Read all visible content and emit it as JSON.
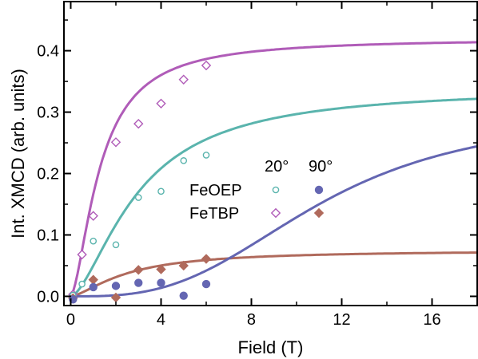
{
  "chart_data": {
    "type": "scatter",
    "xlabel": "Field (T)",
    "ylabel": "Int. XMCD (arb. units)",
    "xlim": [
      -0.3,
      18
    ],
    "ylim": [
      -0.015,
      0.48
    ],
    "x_ticks": [
      0,
      4,
      8,
      12,
      16
    ],
    "x_tick_labels": [
      "0",
      "4",
      "8",
      "12",
      "16"
    ],
    "y_ticks": [
      0.0,
      0.1,
      0.2,
      0.3,
      0.4
    ],
    "y_tick_labels": [
      "0.0",
      "0.1",
      "0.2",
      "0.3",
      "0.4"
    ],
    "grid": false,
    "legend": {
      "placement": "center",
      "header": [
        "20°",
        "90°"
      ],
      "rows": [
        "FeOEP",
        "FeTBP"
      ]
    },
    "series": [
      {
        "name": "FeTBP 20°",
        "color": "#b05cb8",
        "marker": "diamond-open",
        "points": [
          [
            0.1,
            0.003
          ],
          [
            0.5,
            0.068
          ],
          [
            1.0,
            0.131
          ],
          [
            2.0,
            0.251
          ],
          [
            3.0,
            0.281
          ],
          [
            4.0,
            0.314
          ],
          [
            5.0,
            0.353
          ],
          [
            6.0,
            0.376
          ]
        ],
        "fit": {
          "saturation": 0.42,
          "shape": "sigmoid",
          "midfield": 1.3,
          "steepness": 1.6
        }
      },
      {
        "name": "FeOEP 20°",
        "color": "#5ab4ad",
        "marker": "circle-open",
        "points": [
          [
            0.1,
            0.002
          ],
          [
            0.5,
            0.02
          ],
          [
            1.0,
            0.09
          ],
          [
            2.0,
            0.084
          ],
          [
            3.0,
            0.161
          ],
          [
            4.0,
            0.171
          ],
          [
            5.0,
            0.221
          ],
          [
            6.0,
            0.23
          ]
        ],
        "fit": {
          "saturation": 0.34,
          "shape": "sigmoid",
          "midfield": 3.0,
          "steepness": 1.6
        }
      },
      {
        "name": "FeTBP 90°",
        "color": "#b06a5c",
        "marker": "diamond-filled",
        "points": [
          [
            0.1,
            -0.003
          ],
          [
            1.0,
            0.027
          ],
          [
            2.0,
            -0.002
          ],
          [
            3.0,
            0.043
          ],
          [
            4.0,
            0.044
          ],
          [
            5.0,
            0.05
          ],
          [
            6.0,
            0.061
          ]
        ],
        "fit": {
          "saturation": 0.075,
          "shape": "sigmoid",
          "midfield": 2.5,
          "steepness": 1.5
        }
      },
      {
        "name": "FeOEP 90°",
        "color": "#6466b2",
        "marker": "circle-filled",
        "points": [
          [
            0.1,
            -0.005
          ],
          [
            1.0,
            0.015
          ],
          [
            2.0,
            0.017
          ],
          [
            3.0,
            0.022
          ],
          [
            4.0,
            0.022
          ],
          [
            5.0,
            0.001
          ],
          [
            6.0,
            0.02
          ]
        ],
        "fit": {
          "saturation": 0.3,
          "shape": "sigmoid",
          "midfield": 11.0,
          "steepness": 3.0
        }
      }
    ]
  }
}
